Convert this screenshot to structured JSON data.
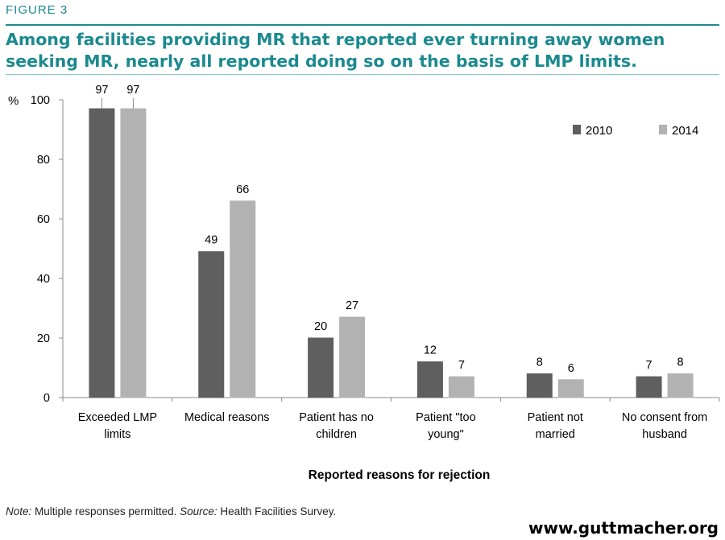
{
  "figure_label": "FIGURE 3",
  "title": "Among facilities providing MR that reported ever turning away women seeking MR, nearly all reported doing so on the basis of LMP limits.",
  "note": {
    "note_label": "Note:",
    "note_text": " Multiple responses permitted. ",
    "source_label": "Source:",
    "source_text": " Health Facilities Survey."
  },
  "website": "www.guttmacher.org",
  "colors": {
    "accent": "#1b8a8f",
    "series_2010": "#5f5f5f",
    "series_2014": "#b2b2b2"
  },
  "chart_data": {
    "type": "bar",
    "ylabel": "%",
    "xlabel": "Reported reasons for rejection",
    "ylim": [
      0,
      100
    ],
    "yticks": [
      0,
      20,
      40,
      60,
      80,
      100
    ],
    "grid": false,
    "legend": "top-right",
    "categories": [
      [
        "Exceeded LMP",
        "limits"
      ],
      [
        "Medical reasons"
      ],
      [
        "Patient has no",
        "children"
      ],
      [
        "Patient \"too",
        "young\""
      ],
      [
        "Patient not",
        "married"
      ],
      [
        "No consent from",
        "husband"
      ]
    ],
    "series": [
      {
        "name": "2010",
        "color": "#5f5f5f",
        "values": [
          97,
          49,
          20,
          12,
          8,
          7
        ]
      },
      {
        "name": "2014",
        "color": "#b2b2b2",
        "values": [
          97,
          66,
          27,
          7,
          6,
          8
        ]
      }
    ]
  }
}
